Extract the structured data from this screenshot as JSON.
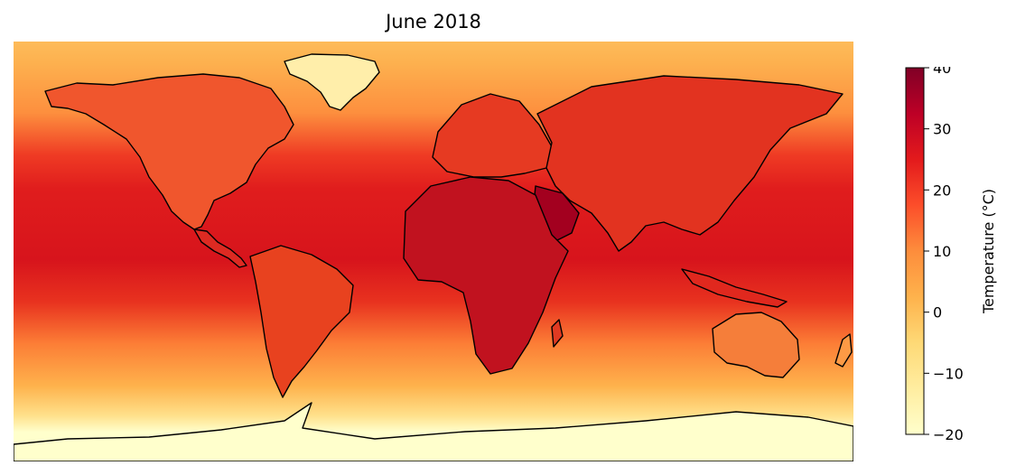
{
  "title": "June 2018",
  "map": {
    "projection": "equirectangular",
    "field": "temperature",
    "colormap": "YlOrRd",
    "colors": {
      "land_outline": "#000000",
      "polar_ice": "#ffffcc",
      "hot_desert": "#8f0025"
    }
  },
  "colorbar": {
    "label": "Temperature (°C)",
    "vmin": -20,
    "vmax": 40,
    "ticks": [
      {
        "value": -20,
        "label": "−20"
      },
      {
        "value": -10,
        "label": "−10"
      },
      {
        "value": 0,
        "label": "0"
      },
      {
        "value": 10,
        "label": "10"
      },
      {
        "value": 20,
        "label": "20"
      },
      {
        "value": 30,
        "label": "30"
      },
      {
        "value": 40,
        "label": "40"
      }
    ],
    "stops": [
      "#ffffcc",
      "#ffeda0",
      "#fed976",
      "#feb24c",
      "#fd8d3c",
      "#fc4e2a",
      "#e31a1c",
      "#bd0026",
      "#800026"
    ]
  }
}
